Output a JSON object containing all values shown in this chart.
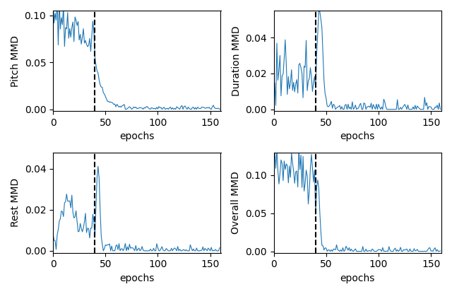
{
  "figsize": [
    6.4,
    4.16
  ],
  "dpi": 100,
  "line_color": "#1f77b4",
  "vline_color": "black",
  "vline_x": 40,
  "n_epochs": 160,
  "subplots": [
    {
      "ylabel": "Pitch MMD",
      "xlabel": "epochs",
      "ylim": [
        -0.002,
        0.105
      ],
      "yticks": [
        0.0,
        0.05,
        0.1
      ]
    },
    {
      "ylabel": "Duration MMD",
      "xlabel": "epochs",
      "ylim": [
        -0.001,
        0.055
      ],
      "yticks": [
        0.0,
        0.02,
        0.04
      ]
    },
    {
      "ylabel": "Rest MMD",
      "xlabel": "epochs",
      "ylim": [
        -0.001,
        0.048
      ],
      "yticks": [
        0.0,
        0.02,
        0.04
      ]
    },
    {
      "ylabel": "Overall MMD",
      "xlabel": "epochs",
      "ylim": [
        -0.002,
        0.13
      ],
      "yticks": [
        0.0,
        0.05,
        0.1
      ]
    }
  ]
}
